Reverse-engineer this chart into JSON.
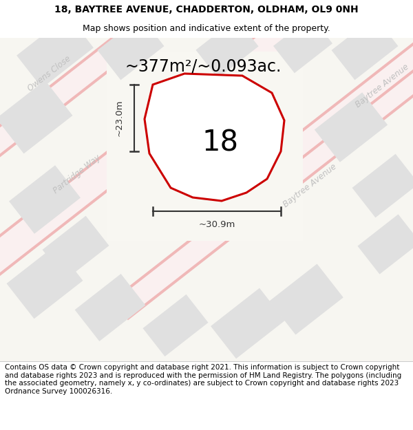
{
  "title_line1": "18, BAYTREE AVENUE, CHADDERTON, OLDHAM, OL9 0NH",
  "title_line2": "Map shows position and indicative extent of the property.",
  "area_text": "~377m²/~0.093ac.",
  "number_label": "18",
  "dim_width": "~30.9m",
  "dim_height": "~23.0m",
  "footer_text": "Contains OS data © Crown copyright and database right 2021. This information is subject to Crown copyright and database rights 2023 and is reproduced with the permission of HM Land Registry. The polygons (including the associated geometry, namely x, y co-ordinates) are subject to Crown copyright and database rights 2023 Ordnance Survey 100026316.",
  "bg_color": "#f7f6f1",
  "road_color_edge": "#f0b8b8",
  "road_color_fill": "#faf0f0",
  "building_color": "#e0e0e0",
  "plot_outline_color": "#cc0000",
  "dim_color": "#333333",
  "street_label_color": "#c0c0c0",
  "title_fontsize": 10,
  "subtitle_fontsize": 9,
  "footer_fontsize": 7.5,
  "area_fontsize": 17,
  "number_fontsize": 30,
  "street_label_fontsize": 8.5
}
